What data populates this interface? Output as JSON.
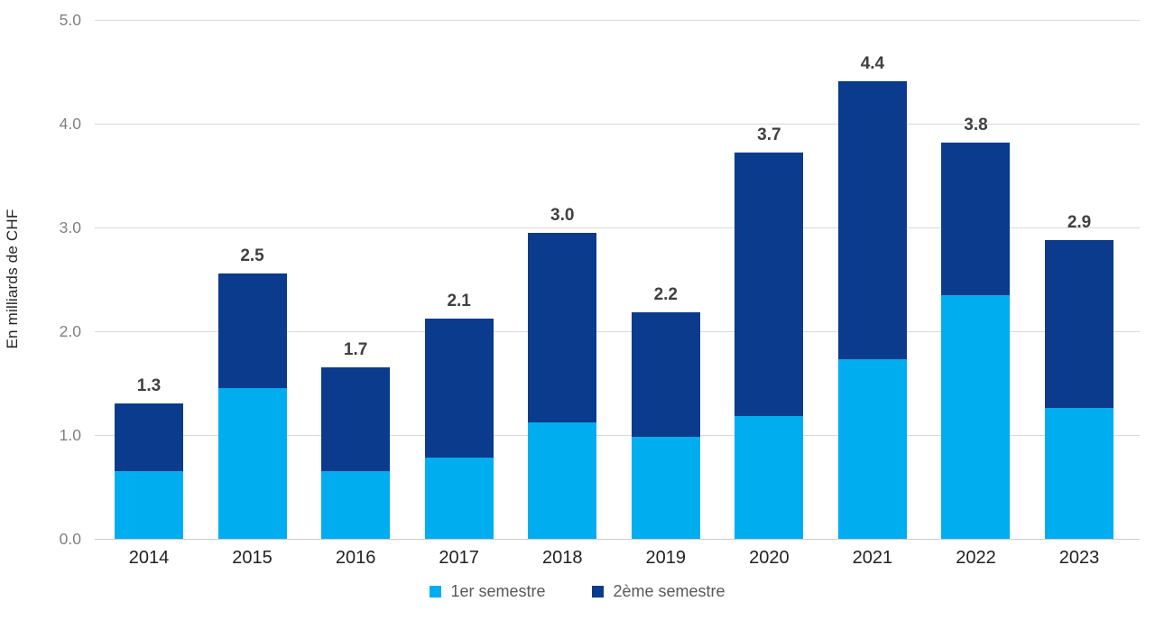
{
  "chart_data": {
    "type": "bar",
    "stacked": true,
    "categories": [
      "2014",
      "2015",
      "2016",
      "2017",
      "2018",
      "2019",
      "2020",
      "2021",
      "2022",
      "2023"
    ],
    "series": [
      {
        "name": "1er semestre",
        "color": "#00AEEF",
        "values": [
          0.65,
          1.45,
          0.65,
          0.78,
          1.12,
          0.98,
          1.18,
          1.73,
          2.35,
          1.26
        ]
      },
      {
        "name": "2ème semestre",
        "color": "#0A3B8C",
        "values": [
          0.65,
          1.1,
          1.0,
          1.34,
          1.83,
          1.2,
          2.54,
          2.68,
          1.47,
          1.62
        ]
      }
    ],
    "total_labels": [
      "1.3",
      "2.5",
      "1.7",
      "2.1",
      "3.0",
      "2.2",
      "3.7",
      "4.4",
      "3.8",
      "2.9"
    ],
    "title": "",
    "xlabel": "",
    "ylabel": "En milliards de CHF",
    "yticks": [
      "0.0",
      "1.0",
      "2.0",
      "3.0",
      "4.0",
      "5.0"
    ],
    "ylim": [
      0,
      5
    ],
    "grid": true,
    "legend_position": "bottom",
    "colors": {
      "grid": "#d9d9d9",
      "tick_text": "#7f7f7f",
      "category_text": "#212121",
      "value_label_text": "#404040",
      "legend_text": "#595959",
      "axis_title_text": "#262626",
      "background": "#ffffff"
    }
  }
}
